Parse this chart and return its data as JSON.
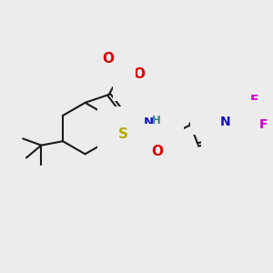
{
  "bg_color": "#ececec",
  "bond_color": "#1a1a1a",
  "bond_lw": 1.5,
  "dbl_off": 0.06,
  "atom_colors": {
    "S": "#b8a800",
    "O": "#dd0000",
    "N": "#1010cc",
    "F": "#cc00cc",
    "H": "#3a8888",
    "C": "#1a1a1a"
  },
  "fs": 9.5
}
